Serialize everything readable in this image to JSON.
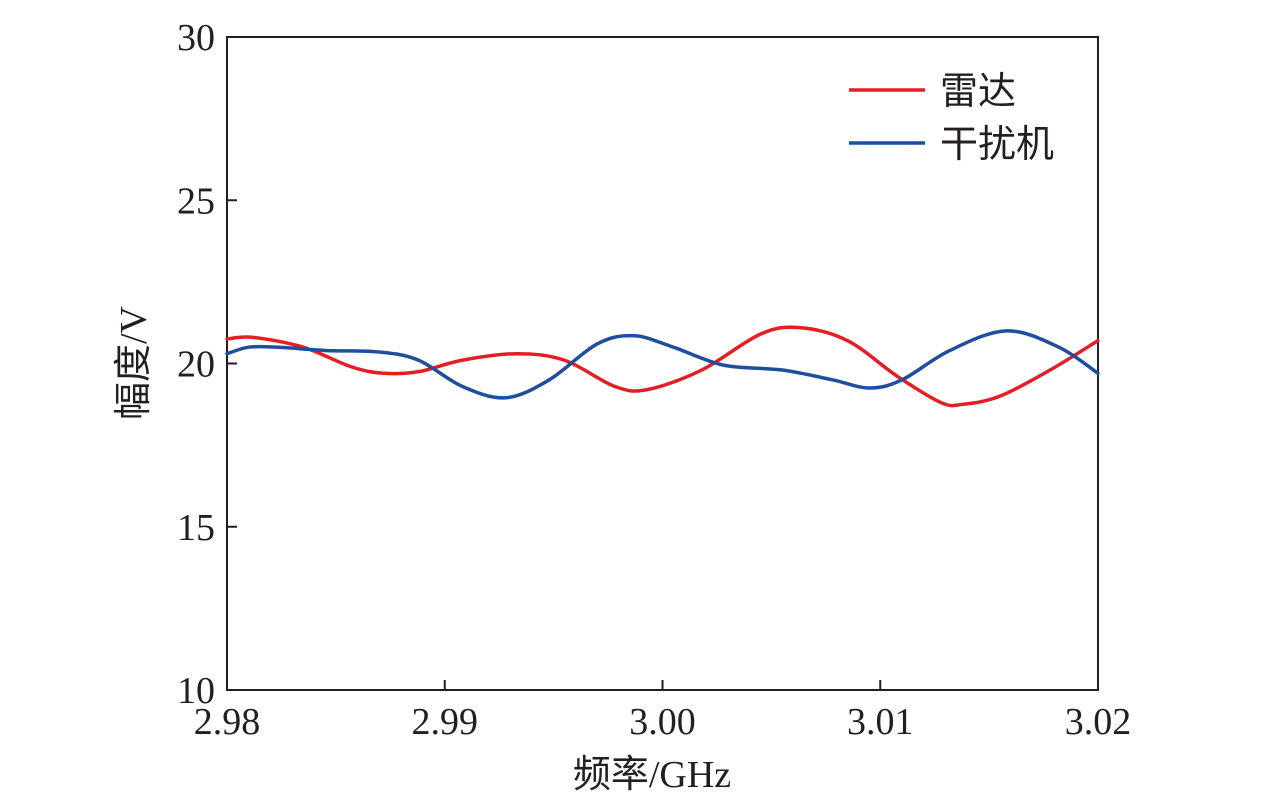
{
  "chart_data": {
    "type": "line",
    "xlabel": "频率/GHz",
    "ylabel": "幅度/V",
    "xlim": [
      2.98,
      3.02
    ],
    "ylim": [
      10,
      30
    ],
    "xticks": [
      2.98,
      2.99,
      3.0,
      3.01,
      3.02
    ],
    "xtick_labels": [
      "2.98",
      "2.99",
      "3.00",
      "3.01",
      "3.02"
    ],
    "yticks": [
      10,
      15,
      20,
      25,
      30
    ],
    "ytick_labels": [
      "10",
      "15",
      "20",
      "25",
      "30"
    ],
    "grid": false,
    "legend_position": "top-right",
    "series": [
      {
        "name": "雷达",
        "color": "#e31e24",
        "x": [
          2.98,
          2.9812,
          2.9835,
          2.9857,
          2.9872,
          2.9888,
          2.9908,
          2.9933,
          2.9955,
          2.9978,
          2.9993,
          3.0018,
          3.0045,
          3.0063,
          3.0085,
          3.0108,
          3.0128,
          3.0138,
          3.0155,
          3.0178,
          3.02
        ],
        "values": [
          20.75,
          20.8,
          20.5,
          19.9,
          19.7,
          19.75,
          20.1,
          20.3,
          20.1,
          19.3,
          19.2,
          19.8,
          20.9,
          21.1,
          20.7,
          19.6,
          18.8,
          18.75,
          19.0,
          19.8,
          20.7
        ]
      },
      {
        "name": "干扰机",
        "color": "#1f4e9d",
        "x": [
          2.98,
          2.981,
          2.9823,
          2.9845,
          2.987,
          2.9888,
          2.9908,
          2.9928,
          2.9948,
          2.997,
          2.9987,
          3.0005,
          3.0028,
          3.0055,
          3.0078,
          3.0095,
          3.011,
          3.0132,
          3.0158,
          3.0182,
          3.02
        ],
        "values": [
          20.3,
          20.5,
          20.5,
          20.4,
          20.35,
          20.1,
          19.3,
          18.95,
          19.5,
          20.6,
          20.85,
          20.5,
          19.95,
          19.8,
          19.5,
          19.25,
          19.5,
          20.4,
          21.0,
          20.5,
          19.7
        ]
      }
    ]
  }
}
